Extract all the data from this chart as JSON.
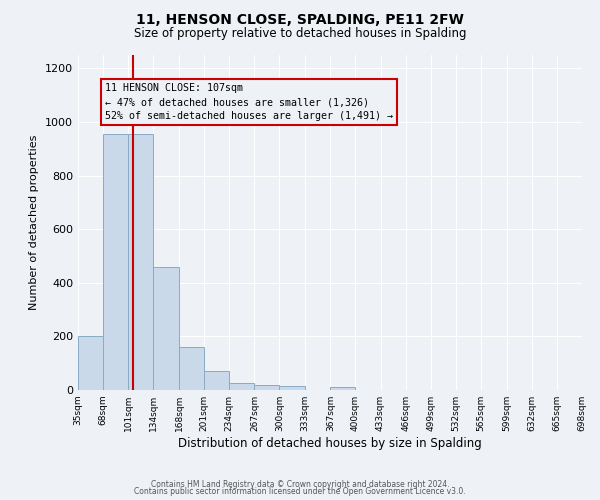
{
  "title": "11, HENSON CLOSE, SPALDING, PE11 2FW",
  "subtitle": "Size of property relative to detached houses in Spalding",
  "xlabel": "Distribution of detached houses by size in Spalding",
  "ylabel": "Number of detached properties",
  "bar_edges": [
    35,
    68,
    101,
    134,
    168,
    201,
    234,
    267,
    300,
    333,
    367,
    400,
    433,
    466,
    499,
    532,
    565,
    599,
    632,
    665,
    698
  ],
  "bar_heights": [
    200,
    955,
    955,
    460,
    160,
    72,
    25,
    18,
    15,
    0,
    12,
    0,
    0,
    0,
    0,
    0,
    0,
    0,
    0,
    0
  ],
  "property_value": 107,
  "red_line_x": 107,
  "bar_color": "#c9d9ea",
  "bar_edge_color": "#8aaac5",
  "red_line_color": "#cc0000",
  "annotation_box_edge_color": "#cc0000",
  "annotation_text_line1": "11 HENSON CLOSE: 107sqm",
  "annotation_text_line2": "← 47% of detached houses are smaller (1,326)",
  "annotation_text_line3": "52% of semi-detached houses are larger (1,491) →",
  "ylim": [
    0,
    1250
  ],
  "yticks": [
    0,
    200,
    400,
    600,
    800,
    1000,
    1200
  ],
  "footer_line1": "Contains HM Land Registry data © Crown copyright and database right 2024.",
  "footer_line2": "Contains public sector information licensed under the Open Government Licence v3.0.",
  "background_color": "#eef2f7",
  "grid_color": "#ffffff"
}
